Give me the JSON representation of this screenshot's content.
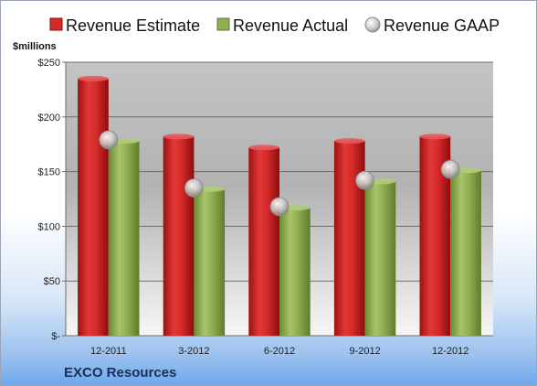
{
  "chart_data": {
    "type": "bar",
    "unit_label": "$millions",
    "company": "EXCO Resources",
    "categories": [
      "12-2011",
      "3-2012",
      "6-2012",
      "9-2012",
      "12-2012"
    ],
    "series": [
      {
        "name": "Revenue Estimate",
        "type": "bar",
        "color": "#d42a2a",
        "values": [
          235,
          182,
          172,
          178,
          182
        ]
      },
      {
        "name": "Revenue Actual",
        "type": "bar",
        "color": "#8fae52",
        "values": [
          178,
          134,
          117,
          141,
          151
        ]
      },
      {
        "name": "Revenue GAAP",
        "type": "marker",
        "color": "#c8c8c8",
        "values": [
          179,
          135,
          118,
          142,
          152
        ]
      }
    ],
    "ylim": [
      0,
      250
    ],
    "yticks": [
      0,
      50,
      100,
      150,
      200,
      250
    ],
    "ytick_labels": [
      "$-",
      "$50",
      "$100",
      "$150",
      "$200",
      "$250"
    ],
    "grid": true,
    "legend_position": "top"
  }
}
